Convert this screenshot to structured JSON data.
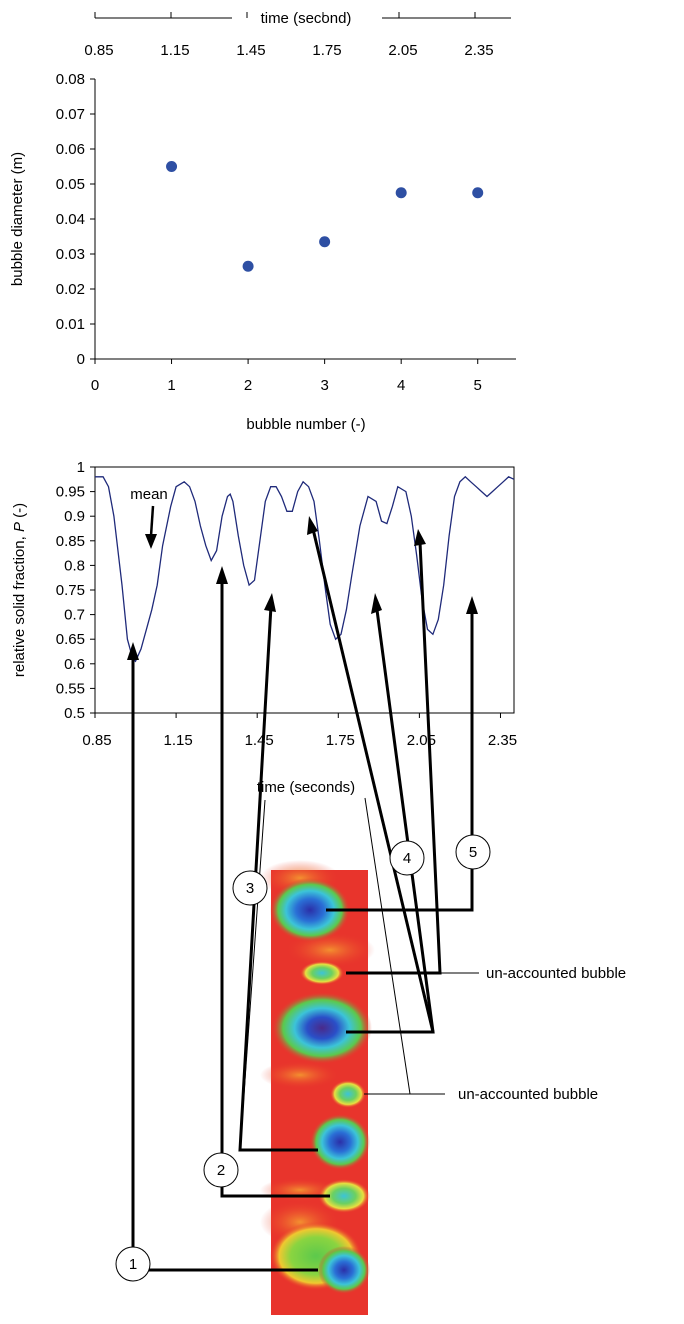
{
  "chart_data": [
    {
      "type": "scatter",
      "top_axis_label": "time (second)",
      "top_axis_ticks": [
        "0.85",
        "1.15",
        "1.45",
        "1.75",
        "2.05",
        "2.35"
      ],
      "xlabel": "bubble number (-)",
      "ylabel": "bubble diameter (m)",
      "xlim": [
        0,
        5.5
      ],
      "ylim": [
        0,
        0.08
      ],
      "x_ticks": [
        "0",
        "1",
        "2",
        "3",
        "4",
        "5"
      ],
      "y_ticks": [
        "0",
        "0.01",
        "0.02",
        "0.03",
        "0.04",
        "0.05",
        "0.06",
        "0.07",
        "0.08"
      ],
      "marker_color": "#2e4fa3",
      "points": [
        {
          "x": 1,
          "y": 0.055
        },
        {
          "x": 2,
          "y": 0.0265
        },
        {
          "x": 3,
          "y": 0.0335
        },
        {
          "x": 4,
          "y": 0.0475
        },
        {
          "x": 5,
          "y": 0.0475
        }
      ]
    },
    {
      "type": "line",
      "xlabel": "time (seconds)",
      "ylabel_main": "relative solid fraction, ",
      "ylabel_var": "P",
      "ylabel_unit": " (-)",
      "xlim": [
        0.85,
        2.4
      ],
      "ylim": [
        0.5,
        1.0
      ],
      "x_ticks": [
        "0.85",
        "1.15",
        "1.45",
        "1.75",
        "2.05",
        "2.35"
      ],
      "y_ticks": [
        "0.5",
        "0.55",
        "0.6",
        "0.65",
        "0.7",
        "0.75",
        "0.8",
        "0.85",
        "0.9",
        "0.95",
        "1"
      ],
      "line_color": "#1f2a7a",
      "mean_label": "mean",
      "series": [
        {
          "x": [
            0.85,
            0.88,
            0.9,
            0.92,
            0.95,
            0.97,
            0.99,
            1.0,
            1.02,
            1.04,
            1.06,
            1.08,
            1.1,
            1.13,
            1.15,
            1.18,
            1.2,
            1.22,
            1.24,
            1.26,
            1.28,
            1.3,
            1.32,
            1.34,
            1.35,
            1.36,
            1.38,
            1.4,
            1.42,
            1.44,
            1.46,
            1.48,
            1.5,
            1.52,
            1.54,
            1.56,
            1.58,
            1.6,
            1.62,
            1.64,
            1.66,
            1.68,
            1.7,
            1.72,
            1.74,
            1.76,
            1.78,
            1.8,
            1.83,
            1.86,
            1.89,
            1.91,
            1.93,
            1.95,
            1.97,
            2.0,
            2.02,
            2.04,
            2.06,
            2.08,
            2.1,
            2.12,
            2.14,
            2.16,
            2.18,
            2.2,
            2.22,
            2.24,
            2.26,
            2.28,
            2.3,
            2.32,
            2.34,
            2.36,
            2.38,
            2.4
          ],
          "y": [
            0.98,
            0.98,
            0.96,
            0.9,
            0.76,
            0.65,
            0.61,
            0.605,
            0.63,
            0.67,
            0.71,
            0.76,
            0.84,
            0.92,
            0.96,
            0.97,
            0.96,
            0.93,
            0.88,
            0.84,
            0.81,
            0.83,
            0.9,
            0.94,
            0.945,
            0.93,
            0.86,
            0.8,
            0.76,
            0.77,
            0.85,
            0.93,
            0.96,
            0.96,
            0.94,
            0.91,
            0.91,
            0.95,
            0.97,
            0.96,
            0.93,
            0.85,
            0.76,
            0.68,
            0.65,
            0.66,
            0.71,
            0.78,
            0.88,
            0.94,
            0.93,
            0.89,
            0.885,
            0.92,
            0.96,
            0.95,
            0.9,
            0.82,
            0.73,
            0.67,
            0.66,
            0.69,
            0.76,
            0.86,
            0.94,
            0.97,
            0.98,
            0.97,
            0.96,
            0.95,
            0.94,
            0.95,
            0.96,
            0.97,
            0.98,
            0.975
          ]
        }
      ]
    }
  ],
  "annotations": {
    "circle_numbers": [
      "1",
      "2",
      "3",
      "4",
      "5"
    ],
    "unaccounted_label_1": "un-accounted bubble",
    "unaccounted_label_2": "un-accounted bubble"
  },
  "colors": {
    "tomogram_background": "#e8342c",
    "bubble_blue": "#2a6fd6",
    "bubble_green": "#58c24a"
  }
}
